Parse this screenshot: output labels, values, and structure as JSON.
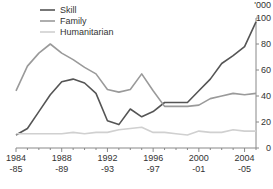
{
  "chart_data": {
    "type": "line",
    "ylabel": "'000",
    "categories": [
      "1984-85",
      null,
      null,
      null,
      "1988-89",
      null,
      null,
      null,
      "1992-93",
      null,
      null,
      null,
      "1996-97",
      null,
      null,
      null,
      "2000-01",
      null,
      null,
      null,
      "2004-05",
      null
    ],
    "series": [
      {
        "name": "Skill",
        "color": "#555555",
        "values": [
          10,
          15,
          28,
          41,
          51,
          53,
          50,
          42,
          21,
          18,
          30,
          24,
          28,
          35,
          35,
          35,
          44,
          53,
          65,
          71,
          78,
          97
        ]
      },
      {
        "name": "Family",
        "color": "#9a9a9a",
        "values": [
          44,
          63,
          73,
          80,
          73,
          68,
          62,
          57,
          45,
          43,
          45,
          57,
          44,
          32,
          32,
          32,
          33,
          38,
          40,
          42,
          41,
          42
        ]
      },
      {
        "name": "Humanitarian",
        "color": "#d0d0d0",
        "values": [
          11,
          11,
          11,
          11,
          11,
          12,
          11,
          12,
          12,
          14,
          15,
          16,
          12,
          12,
          11,
          10,
          13,
          12,
          12,
          14,
          13,
          13
        ]
      }
    ],
    "ylim": [
      0,
      100
    ],
    "yticks": [
      0,
      20,
      40,
      60,
      80,
      100
    ],
    "legend": "upper-left"
  }
}
